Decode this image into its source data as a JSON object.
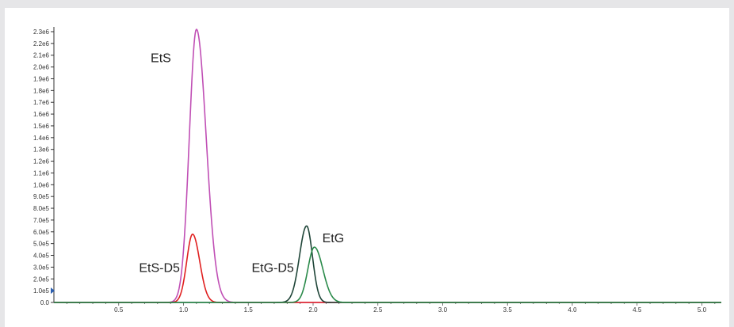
{
  "chart_data": {
    "type": "line",
    "title": "",
    "xlabel": "",
    "ylabel": "",
    "xlim": [
      0,
      5.15
    ],
    "ylim": [
      0,
      2300000
    ],
    "grid": false,
    "x_ticks": [
      0.5,
      1.0,
      1.5,
      2.0,
      2.5,
      3.0,
      3.5,
      4.0,
      4.5,
      5.0
    ],
    "x_tick_labels": [
      "0.5",
      "1.0",
      "1.5",
      "2.0",
      "2.5",
      "3.0",
      "3.5",
      "4.0",
      "4.5",
      "5.0"
    ],
    "y_ticks": [
      0,
      100000,
      200000,
      300000,
      400000,
      500000,
      600000,
      700000,
      800000,
      900000,
      1000000,
      1100000,
      1200000,
      1300000,
      1400000,
      1500000,
      1600000,
      1700000,
      1800000,
      1900000,
      2000000,
      2100000,
      2200000,
      2300000
    ],
    "y_tick_labels": [
      "0.0",
      "1.0e5",
      "2.0e5",
      "3.0e5",
      "4.0e5",
      "5.0e5",
      "6.0e5",
      "7.0e5",
      "8.0e5",
      "9.0e5",
      "1.0e6",
      "1.1e6",
      "1.2e6",
      "1.3e6",
      "1.4e6",
      "1.5e6",
      "1.6e6",
      "1.7e6",
      "1.8e6",
      "1.9e6",
      "2.0e6",
      "2.1e6",
      "2.2e6",
      "2.3e6"
    ],
    "series": [
      {
        "label": "EtS",
        "color": "#c04fb5",
        "peak_rt": 1.1,
        "peak_height": 2320000,
        "width_left": 0.055,
        "width_right": 0.075
      },
      {
        "label": "EtS-D5",
        "color": "#e02020",
        "peak_rt": 1.07,
        "peak_height": 580000,
        "width_left": 0.045,
        "width_right": 0.055
      },
      {
        "label": "EtG-D5",
        "color": "#1f4538",
        "peak_rt": 1.95,
        "peak_height": 650000,
        "width_left": 0.055,
        "width_right": 0.045
      },
      {
        "label": "EtG",
        "color": "#2a8a4a",
        "peak_rt": 2.01,
        "peak_height": 470000,
        "width_left": 0.05,
        "width_right": 0.065
      }
    ]
  }
}
